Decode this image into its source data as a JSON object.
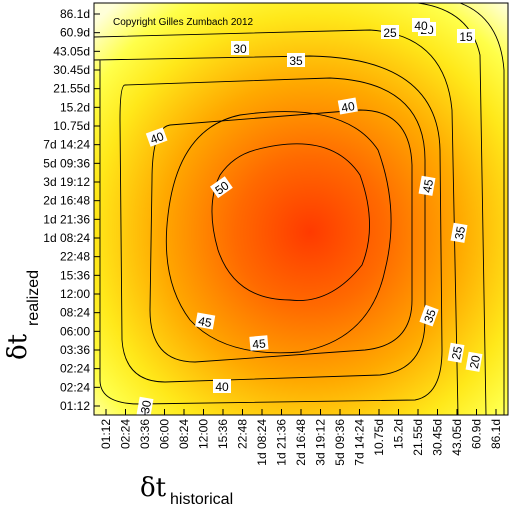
{
  "chart_data": {
    "type": "heatmap",
    "subtype": "contour",
    "copyright": "Copyright Gilles Zumbach 2012",
    "xlabel": {
      "symbol": "δt",
      "subscript": "historical"
    },
    "ylabel": {
      "symbol": "δt",
      "subscript": "realized"
    },
    "x_ticks": [
      "01:12",
      "02:24",
      "03:36",
      "06:00",
      "08:24",
      "12:00",
      "15:36",
      "22:48",
      "1d 08:24",
      "1d 21:36",
      "2d 16:48",
      "3d 19:12",
      "5d 09:36",
      "7d 14:24",
      "10.75d",
      "15.2d",
      "21.55d",
      "30.45d",
      "43.05d",
      "60.9d",
      "86.1d"
    ],
    "y_ticks": [
      "01:12",
      "02:24",
      "02:24",
      "03:36",
      "06:00",
      "08:24",
      "12:00",
      "15:36",
      "22:48",
      "1d 08:24",
      "1d 21:36",
      "2d 16:48",
      "3d 19:12",
      "5d 09:36",
      "7d 14:24",
      "10.75d",
      "15.2d",
      "21.55d",
      "30.45d",
      "43.05d",
      "60.9d",
      "86.1d"
    ],
    "contour_levels": [
      15,
      20,
      25,
      30,
      35,
      40,
      45,
      50
    ],
    "contour_labels": [
      "15",
      "20",
      "25",
      "30",
      "35",
      "40",
      "45",
      "50",
      "30",
      "35",
      "40",
      "45",
      "40",
      "45",
      "35",
      "25",
      "20",
      "40",
      "30"
    ],
    "peak": {
      "x": "1d 08:24",
      "y": "1d 21:36"
    },
    "colormap": [
      "#ff3a00",
      "#ffff3a",
      "#ffffd8"
    ],
    "grid": false,
    "legend": "none"
  }
}
